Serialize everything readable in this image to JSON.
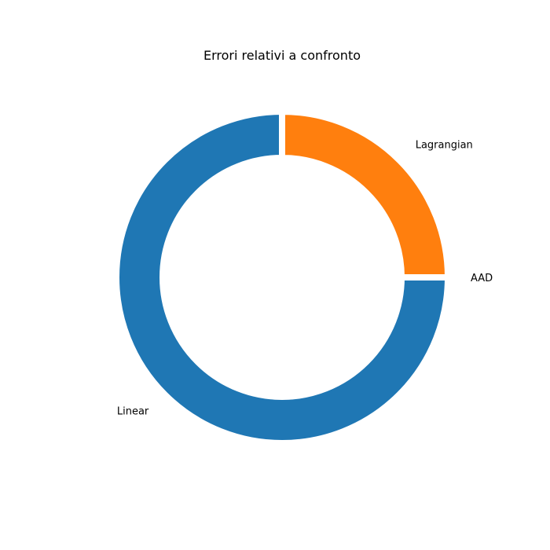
{
  "chart_data": {
    "type": "pie",
    "style": "donut",
    "title": "Errori relativi a confronto",
    "labels": [
      "AAD",
      "Lagrangian",
      "Linear"
    ],
    "values": [
      0.0,
      25.0,
      75.0
    ],
    "colors": [
      "#2ca02c",
      "#ff7f0e",
      "#1f77b4"
    ],
    "start_angle_deg": 0,
    "direction": "counterclockwise",
    "legend": "none"
  }
}
